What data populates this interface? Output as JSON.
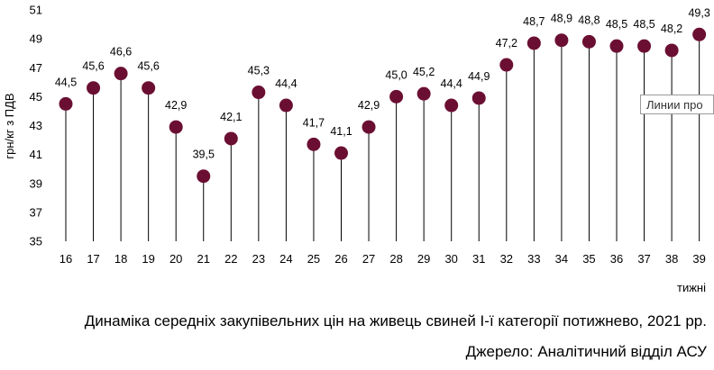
{
  "chart_data": {
    "type": "lollipop",
    "title": "Динаміка середніх закупівельних цін на живець свиней І-ї категорії потижнево, 2021 рр.",
    "source": "Джерело: Аналітичний відділ АСУ",
    "xlabel": "тижні",
    "ylabel": "грн/кг з ПДВ",
    "ylim": [
      35,
      51
    ],
    "yticks": [
      "35",
      "37",
      "39",
      "41",
      "43",
      "45",
      "47",
      "49",
      "51"
    ],
    "categories": [
      "16",
      "17",
      "18",
      "19",
      "20",
      "21",
      "22",
      "23",
      "24",
      "25",
      "26",
      "27",
      "28",
      "29",
      "30",
      "31",
      "32",
      "33",
      "34",
      "35",
      "36",
      "37",
      "38",
      "39"
    ],
    "values": [
      44.5,
      45.6,
      46.6,
      45.6,
      42.9,
      39.5,
      42.1,
      45.3,
      44.4,
      41.7,
      41.1,
      42.9,
      45.0,
      45.2,
      44.4,
      44.9,
      47.2,
      48.7,
      48.9,
      48.8,
      48.5,
      48.5,
      48.2,
      49.3
    ],
    "labels": [
      "44,5",
      "45,6",
      "46,6",
      "45,6",
      "42,9",
      "39,5",
      "42,1",
      "45,3",
      "44,4",
      "41,7",
      "41,1",
      "42,9",
      "45,0",
      "45,2",
      "44,4",
      "44,9",
      "47,2",
      "48,7",
      "48,9",
      "48,8",
      "48,5",
      "48,5",
      "48,2",
      "49,3"
    ],
    "marker_color": "#6b0f32",
    "stem_color": "#000000",
    "grid": false
  },
  "tooltip": {
    "text": "Линии про"
  }
}
